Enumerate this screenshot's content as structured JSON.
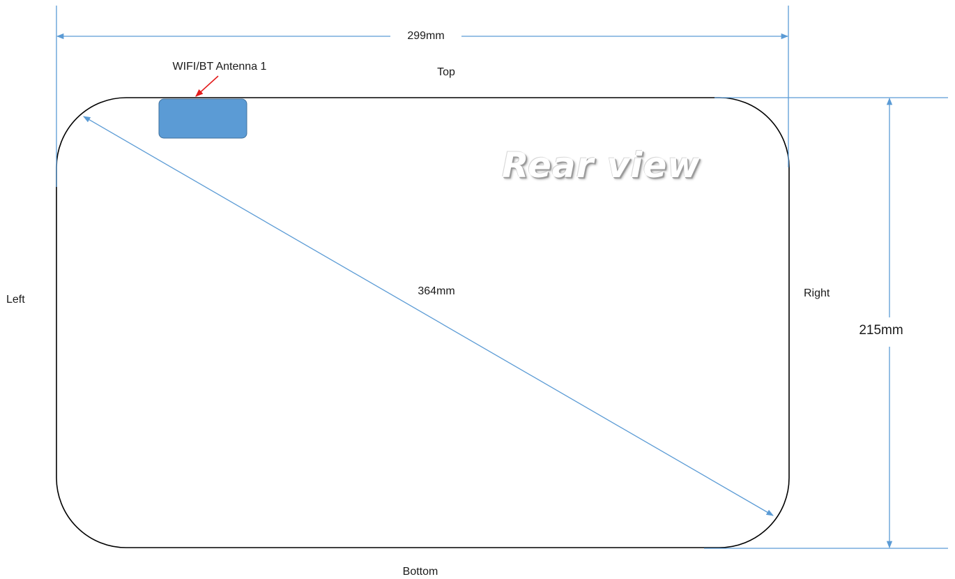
{
  "title": "Rear view",
  "dimensions": {
    "width": "299mm",
    "height": "215mm",
    "diagonal": "364mm"
  },
  "sides": {
    "top": "Top",
    "bottom": "Bottom",
    "left": "Left",
    "right": "Right"
  },
  "antenna": {
    "label": "WIFI/BT Antenna 1",
    "fill_color": "#5b9bd5",
    "pointer_color": "#e31b1b"
  },
  "colors": {
    "dimension_line": "#5b9bd5",
    "outline": "#000000"
  }
}
